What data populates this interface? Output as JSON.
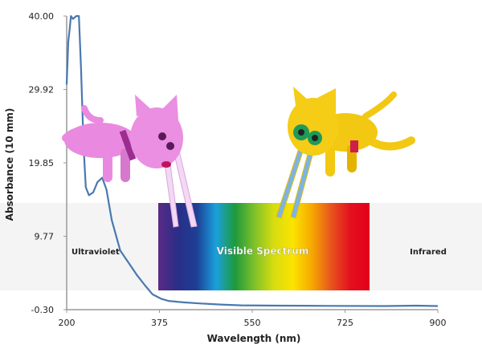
{
  "chart_data": {
    "type": "line",
    "xlabel": "Wavelength (nm)",
    "ylabel": "Absorbance (10 mm)",
    "xlim": [
      200,
      900
    ],
    "ylim": [
      -0.3,
      40.0
    ],
    "xticks": [
      "200",
      "375",
      "550",
      "725",
      "900"
    ],
    "yticks": [
      "40.00",
      "29.92",
      "19.85",
      "9.77",
      "-0.30"
    ],
    "grid": false,
    "series": [
      {
        "color": "#4a78b0",
        "x": [
          200,
          203,
          206,
          208,
          212,
          218,
          223,
          227,
          232,
          236,
          242,
          250,
          258,
          267,
          275,
          285,
          301,
          318,
          332,
          348,
          362,
          378,
          392,
          420,
          453,
          490,
          529,
          600,
          700,
          800,
          860,
          900
        ],
        "y": [
          30.6,
          36.5,
          38.5,
          40.0,
          39.6,
          40.0,
          40.0,
          33.0,
          22.0,
          16.5,
          15.4,
          15.8,
          17.2,
          17.8,
          16.2,
          12.0,
          7.8,
          6.0,
          4.5,
          3.0,
          1.8,
          1.2,
          0.9,
          0.7,
          0.55,
          0.4,
          0.3,
          0.25,
          0.22,
          0.2,
          0.25,
          0.2
        ]
      }
    ],
    "annotations": {
      "ultraviolet": "Ultraviolet",
      "visible": "Visible Spectrum",
      "infrared": "Infrared"
    },
    "band_color": "#f4f4f4",
    "spectrum_colors": [
      "#5a2a86",
      "#2a2e88",
      "#1d3f94",
      "#1aa0dc",
      "#1e9a3c",
      "#7fc02a",
      "#d6dc10",
      "#fbe400",
      "#f6a800",
      "#e8541e",
      "#e3101e",
      "#e3001b"
    ]
  }
}
